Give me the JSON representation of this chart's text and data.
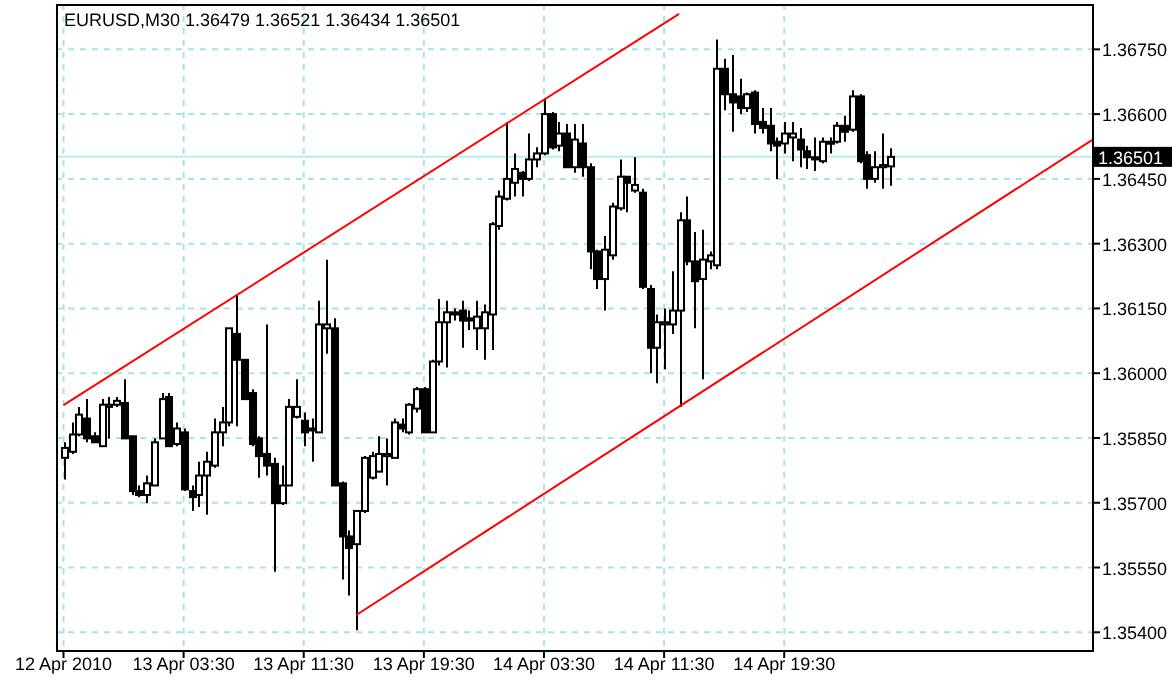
{
  "chart_data": {
    "type": "candlestick",
    "title": "EURUSD,M30  1.36479 1.36521 1.36434 1.36501",
    "x": [
      "2010-04-12T19:30",
      "2010-04-12T20:00",
      "2010-04-12T20:30",
      "2010-04-12T21:00",
      "2010-04-12T21:30",
      "2010-04-12T22:00",
      "2010-04-12T22:30",
      "2010-04-12T23:00",
      "2010-04-12T23:30",
      "2010-04-13T00:00",
      "2010-04-13T00:30",
      "2010-04-13T01:00",
      "2010-04-13T01:30",
      "2010-04-13T02:00",
      "2010-04-13T02:30",
      "2010-04-13T03:00",
      "2010-04-13T03:30",
      "2010-04-13T04:00",
      "2010-04-13T04:30",
      "2010-04-13T05:00",
      "2010-04-13T05:30",
      "2010-04-13T06:00",
      "2010-04-13T06:30",
      "2010-04-13T07:00",
      "2010-04-13T07:30",
      "2010-04-13T08:00",
      "2010-04-13T08:30",
      "2010-04-13T09:00",
      "2010-04-13T09:30",
      "2010-04-13T10:00",
      "2010-04-13T10:30",
      "2010-04-13T11:00",
      "2010-04-13T11:30",
      "2010-04-13T12:00",
      "2010-04-13T12:30",
      "2010-04-13T13:00",
      "2010-04-13T13:30",
      "2010-04-13T14:00",
      "2010-04-13T14:30",
      "2010-04-13T15:00",
      "2010-04-13T15:30",
      "2010-04-13T16:00",
      "2010-04-13T16:30",
      "2010-04-13T17:00",
      "2010-04-13T17:30",
      "2010-04-13T18:00",
      "2010-04-13T18:30",
      "2010-04-13T19:00",
      "2010-04-13T19:30",
      "2010-04-13T20:00",
      "2010-04-13T20:30",
      "2010-04-13T21:00",
      "2010-04-13T21:30",
      "2010-04-13T22:00",
      "2010-04-13T22:30",
      "2010-04-13T23:00",
      "2010-04-13T23:30",
      "2010-04-14T00:00",
      "2010-04-14T00:30",
      "2010-04-14T01:00",
      "2010-04-14T01:30",
      "2010-04-14T02:00",
      "2010-04-14T02:30",
      "2010-04-14T03:00",
      "2010-04-14T03:30",
      "2010-04-14T04:00",
      "2010-04-14T04:30",
      "2010-04-14T05:00",
      "2010-04-14T05:30",
      "2010-04-14T06:00",
      "2010-04-14T06:30",
      "2010-04-14T07:00",
      "2010-04-14T07:30",
      "2010-04-14T08:00",
      "2010-04-14T08:30",
      "2010-04-14T09:00",
      "2010-04-14T09:30",
      "2010-04-14T10:00",
      "2010-04-14T10:30",
      "2010-04-14T11:00",
      "2010-04-14T11:30",
      "2010-04-14T12:00",
      "2010-04-14T12:30",
      "2010-04-14T13:00",
      "2010-04-14T13:30",
      "2010-04-14T14:00",
      "2010-04-14T14:30",
      "2010-04-14T15:00",
      "2010-04-14T15:30",
      "2010-04-14T16:00",
      "2010-04-14T16:30",
      "2010-04-14T17:00",
      "2010-04-14T17:30",
      "2010-04-14T18:00",
      "2010-04-14T18:30",
      "2010-04-14T19:00",
      "2010-04-14T19:30",
      "2010-04-14T20:00",
      "2010-04-14T20:30",
      "2010-04-14T21:00",
      "2010-04-14T21:30",
      "2010-04-14T22:00",
      "2010-04-14T22:30",
      "2010-04-14T23:00",
      "2010-04-14T23:30",
      "2010-04-15T00:00",
      "2010-04-15T00:30",
      "2010-04-15T01:00",
      "2010-04-15T01:30",
      "2010-04-15T02:00",
      "2010-04-15T02:30"
    ],
    "ohlc": [
      [
        1.35804,
        1.3584,
        1.35754,
        1.35827
      ],
      [
        1.35818,
        1.35886,
        1.35813,
        1.35858
      ],
      [
        1.35858,
        1.35922,
        1.35854,
        1.35904
      ],
      [
        1.35895,
        1.3594,
        1.3584,
        1.35849
      ],
      [
        1.35854,
        1.35863,
        1.3584,
        1.3584
      ],
      [
        1.35831,
        1.3594,
        1.35831,
        1.35927
      ],
      [
        1.35922,
        1.35945,
        1.35849,
        1.35927
      ],
      [
        1.35927,
        1.35945,
        1.35922,
        1.35936
      ],
      [
        1.35931,
        1.35986,
        1.35849,
        1.35849
      ],
      [
        1.35854,
        1.35854,
        1.35718,
        1.35727
      ],
      [
        1.35727,
        1.3574,
        1.35713,
        1.35718
      ],
      [
        1.35718,
        1.35763,
        1.35699,
        1.35745
      ],
      [
        1.3574,
        1.35849,
        1.3574,
        1.3584
      ],
      [
        1.35849,
        1.35954,
        1.35849,
        1.3594
      ],
      [
        1.35945,
        1.35954,
        1.35831,
        1.35831
      ],
      [
        1.35836,
        1.35886,
        1.35831,
        1.35872
      ],
      [
        1.35863,
        1.35872,
        1.35727,
        1.35731
      ],
      [
        1.35727,
        1.3574,
        1.35681,
        1.35713
      ],
      [
        1.35718,
        1.35795,
        1.3569,
        1.35763
      ],
      [
        1.35763,
        1.35818,
        1.35672,
        1.35795
      ],
      [
        1.35786,
        1.35895,
        1.35781,
        1.35863
      ],
      [
        1.35863,
        1.35922,
        1.35831,
        1.35886
      ],
      [
        1.35886,
        1.36104,
        1.35877,
        1.36104
      ],
      [
        1.36091,
        1.36182,
        1.35877,
        1.36031
      ],
      [
        1.36031,
        1.36031,
        1.3594,
        1.3594
      ],
      [
        1.35954,
        1.35963,
        1.35831,
        1.35836
      ],
      [
        1.35849,
        1.35854,
        1.35758,
        1.35808
      ],
      [
        1.35813,
        1.36113,
        1.35763,
        1.35786
      ],
      [
        1.3579,
        1.35804,
        1.3554,
        1.35699
      ],
      [
        1.35699,
        1.35786,
        1.35695,
        1.3574
      ],
      [
        1.3574,
        1.3594,
        1.3574,
        1.35922
      ],
      [
        1.35899,
        1.35986,
        1.35895,
        1.35922
      ],
      [
        1.3589,
        1.35909,
        1.35831,
        1.35863
      ],
      [
        1.35872,
        1.35895,
        1.35795,
        1.35868
      ],
      [
        1.35863,
        1.36168,
        1.35863,
        1.36113
      ],
      [
        1.36104,
        1.36263,
        1.36045,
        1.36113
      ],
      [
        1.36104,
        1.36127,
        1.3574,
        1.3574
      ],
      [
        1.35745,
        1.35749,
        1.35522,
        1.35622
      ],
      [
        1.35622,
        1.35636,
        1.35485,
        1.35595
      ],
      [
        1.35604,
        1.35681,
        1.35405,
        1.35681
      ],
      [
        1.35681,
        1.35808,
        1.35676,
        1.35804
      ],
      [
        1.35758,
        1.35818,
        1.35754,
        1.35808
      ],
      [
        1.35772,
        1.35854,
        1.35772,
        1.35813
      ],
      [
        1.35808,
        1.35849,
        1.3574,
        1.35813
      ],
      [
        1.35804,
        1.35895,
        1.35804,
        1.35886
      ],
      [
        1.35881,
        1.35895,
        1.35863,
        1.35872
      ],
      [
        1.35863,
        1.35931,
        1.35858,
        1.35927
      ],
      [
        1.35918,
        1.35968,
        1.35909,
        1.35963
      ],
      [
        1.35963,
        1.35968,
        1.35863,
        1.35863
      ],
      [
        1.35863,
        1.36031,
        1.35863,
        1.36027
      ],
      [
        1.36027,
        1.36172,
        1.36018,
        1.36118
      ],
      [
        1.36118,
        1.36168,
        1.36013,
        1.36141
      ],
      [
        1.36141,
        1.3615,
        1.36122,
        1.36136
      ],
      [
        1.36145,
        1.36168,
        1.36059,
        1.36122
      ],
      [
        1.36127,
        1.36145,
        1.361,
        1.36122
      ],
      [
        1.36104,
        1.36168,
        1.36054,
        1.36131
      ],
      [
        1.36104,
        1.36159,
        1.36031,
        1.36141
      ],
      [
        1.36136,
        1.3635,
        1.36054,
        1.36345
      ],
      [
        1.36341,
        1.36423,
        1.36332,
        1.36409
      ],
      [
        1.36404,
        1.36582,
        1.364,
        1.3645
      ],
      [
        1.36441,
        1.36509,
        1.36409,
        1.36473
      ],
      [
        1.36464,
        1.36468,
        1.36409,
        1.3645
      ],
      [
        1.3645,
        1.36555,
        1.36445,
        1.36495
      ],
      [
        1.36495,
        1.36523,
        1.36477,
        1.36509
      ],
      [
        1.36509,
        1.36637,
        1.36505,
        1.366
      ],
      [
        1.366,
        1.36605,
        1.36518,
        1.36523
      ],
      [
        1.36527,
        1.36582,
        1.36514,
        1.36555
      ],
      [
        1.36555,
        1.36577,
        1.36477,
        1.36477
      ],
      [
        1.36477,
        1.36577,
        1.36464,
        1.36541
      ],
      [
        1.36532,
        1.36577,
        1.36455,
        1.36477
      ],
      [
        1.36477,
        1.36486,
        1.36241,
        1.36282
      ],
      [
        1.36282,
        1.36286,
        1.36195,
        1.36218
      ],
      [
        1.36218,
        1.36318,
        1.36145,
        1.36286
      ],
      [
        1.36273,
        1.36395,
        1.36263,
        1.36386
      ],
      [
        1.36382,
        1.36495,
        1.36377,
        1.36455
      ],
      [
        1.36455,
        1.36455,
        1.36373,
        1.36441
      ],
      [
        1.36423,
        1.365,
        1.36418,
        1.36436
      ],
      [
        1.36418,
        1.36427,
        1.36195,
        1.362
      ],
      [
        1.36195,
        1.36204,
        1.36,
        1.36059
      ],
      [
        1.36059,
        1.36136,
        1.35977,
        1.36118
      ],
      [
        1.36113,
        1.3615,
        1.36009,
        1.36118
      ],
      [
        1.36113,
        1.36236,
        1.36091,
        1.36145
      ],
      [
        1.36145,
        1.36373,
        1.35922,
        1.36354
      ],
      [
        1.36354,
        1.36409,
        1.3625,
        1.36259
      ],
      [
        1.36259,
        1.36327,
        1.36104,
        1.36213
      ],
      [
        1.36218,
        1.36332,
        1.35986,
        1.36263
      ],
      [
        1.36259,
        1.36282,
        1.36241,
        1.36273
      ],
      [
        1.3625,
        1.36773,
        1.36241,
        1.36705
      ],
      [
        1.36705,
        1.36728,
        1.36609,
        1.36646
      ],
      [
        1.36646,
        1.36737,
        1.36559,
        1.36627
      ],
      [
        1.36641,
        1.36682,
        1.366,
        1.36614
      ],
      [
        1.36614,
        1.3665,
        1.36605,
        1.36646
      ],
      [
        1.3665,
        1.36655,
        1.36555,
        1.36577
      ],
      [
        1.36582,
        1.36614,
        1.36555,
        1.36568
      ],
      [
        1.36573,
        1.36614,
        1.36514,
        1.36532
      ],
      [
        1.36536,
        1.36546,
        1.3645,
        1.36527
      ],
      [
        1.36532,
        1.36582,
        1.36509,
        1.36555
      ],
      [
        1.36546,
        1.36582,
        1.36491,
        1.36555
      ],
      [
        1.36541,
        1.36568,
        1.36477,
        1.36518
      ],
      [
        1.36514,
        1.36527,
        1.36473,
        1.365
      ],
      [
        1.365,
        1.36546,
        1.36468,
        1.36495
      ],
      [
        1.36491,
        1.36546,
        1.36486,
        1.36536
      ],
      [
        1.36532,
        1.36546,
        1.36509,
        1.36536
      ],
      [
        1.36536,
        1.36582,
        1.36532,
        1.36573
      ],
      [
        1.36573,
        1.36596,
        1.36536,
        1.36559
      ],
      [
        1.36564,
        1.36655,
        1.36559,
        1.36641
      ],
      [
        1.36641,
        1.36646,
        1.36486,
        1.36491
      ],
      [
        1.36505,
        1.36514,
        1.36427,
        1.3645
      ],
      [
        1.3645,
        1.36514,
        1.36441,
        1.36477
      ],
      [
        1.36477,
        1.36555,
        1.36427,
        1.36482
      ],
      [
        1.36479,
        1.36521,
        1.36434,
        1.36501
      ]
    ],
    "series": [
      {
        "type": "line",
        "color": "#ff0000",
        "x": [
          "2010-04-12T19:30",
          "2010-04-14T12:30"
        ],
        "values": [
          1.35926,
          1.36832
        ]
      },
      {
        "type": "line",
        "color": "#ff0000",
        "x": [
          "2010-04-13T15:00",
          "2010-04-15T16:00"
        ],
        "values": [
          1.3544,
          1.3654
        ]
      }
    ],
    "xlim": [
      "2010-04-12T19:00",
      "2010-04-15T16:00"
    ],
    "xticks": [
      {
        "value": "2010-04-12T19:30",
        "label": "12 Apr 2010"
      },
      {
        "value": "2010-04-13T03:30",
        "label": "13 Apr 03:30"
      },
      {
        "value": "2010-04-13T11:30",
        "label": "13 Apr 11:30"
      },
      {
        "value": "2010-04-13T19:30",
        "label": "13 Apr 19:30"
      },
      {
        "value": "2010-04-14T03:30",
        "label": "14 Apr 03:30"
      },
      {
        "value": "2010-04-14T11:30",
        "label": "14 Apr 11:30"
      },
      {
        "value": "2010-04-14T19:30",
        "label": "14 Apr 19:30"
      }
    ],
    "ylim": [
      1.35359,
      1.36855
    ],
    "yticks": [
      {
        "value": 1.354,
        "label": "1.35400"
      },
      {
        "value": 1.3555,
        "label": "1.35550"
      },
      {
        "value": 1.357,
        "label": "1.35700"
      },
      {
        "value": 1.3585,
        "label": "1.35850"
      },
      {
        "value": 1.36,
        "label": "1.36000"
      },
      {
        "value": 1.3615,
        "label": "1.36150"
      },
      {
        "value": 1.363,
        "label": "1.36300"
      },
      {
        "value": 1.3645,
        "label": "1.36450"
      },
      {
        "value": 1.366,
        "label": "1.36600"
      },
      {
        "value": 1.3675,
        "label": "1.36750"
      }
    ],
    "ref_lines": [
      {
        "axis": "y",
        "value": 1.36501,
        "label": "1.36501",
        "color": "#b4eeee"
      }
    ],
    "grid": true
  }
}
